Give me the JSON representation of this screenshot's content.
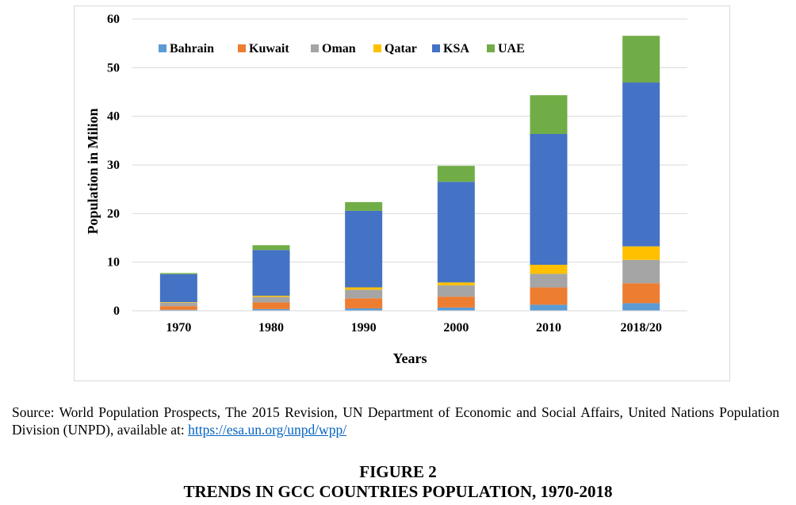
{
  "chart_data": {
    "type": "stacked-bar",
    "categories": [
      "1970",
      "1980",
      "1990",
      "2000",
      "2010",
      "2018/20"
    ],
    "series": [
      {
        "name": "Bahrain",
        "color": "#5b9bd5",
        "values": [
          0.2,
          0.35,
          0.5,
          0.67,
          1.24,
          1.57
        ]
      },
      {
        "name": "Kuwait",
        "color": "#ed7d31",
        "values": [
          0.75,
          1.37,
          2.06,
          2.23,
          3.56,
          4.1
        ]
      },
      {
        "name": "Oman",
        "color": "#a5a5a5",
        "values": [
          0.72,
          1.15,
          1.77,
          2.34,
          2.8,
          4.8
        ]
      },
      {
        "name": "Qatar",
        "color": "#ffc000",
        "values": [
          0.11,
          0.23,
          0.48,
          0.59,
          1.86,
          2.78
        ]
      },
      {
        "name": "KSA",
        "color": "#4472c4",
        "values": [
          5.75,
          9.4,
          15.75,
          20.7,
          26.9,
          33.7
        ]
      },
      {
        "name": "UAE",
        "color": "#70ad47",
        "values": [
          0.23,
          0.99,
          1.79,
          3.28,
          7.97,
          9.6
        ]
      }
    ],
    "ylabel": "Population in Milion",
    "xlabel": "Years",
    "ylim": [
      0,
      60
    ],
    "yticks": [
      0,
      10,
      20,
      30,
      40,
      50,
      60
    ],
    "grid": true,
    "legend_position": "top"
  },
  "caption": {
    "source_text": "Source: World Population Prospects, The 2015 Revision, UN Department of Economic and Social Affairs, United Nations Population Division (UNPD), available at: ",
    "source_link": "https://esa.un.org/unpd/wpp/",
    "figure_number": "FIGURE 2",
    "figure_title": "TRENDS IN GCC COUNTRIES POPULATION, 1970-2018"
  }
}
